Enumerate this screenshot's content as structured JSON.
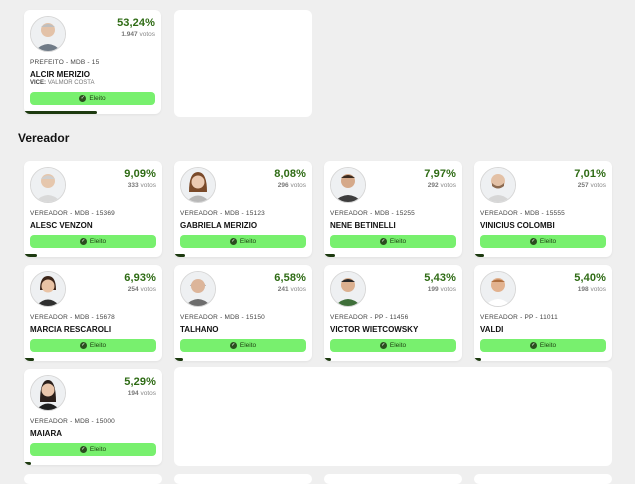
{
  "mayor": {
    "pct": "53,24%",
    "votes": "1.947",
    "votes_label": "votos",
    "role": "PREFEITO - MDB - 15",
    "name": "ALCIR MERIZIO",
    "vice_label": "VICE:",
    "vice_name": "VALMOR COSTA",
    "status": "Eleito",
    "progress": 0.5324
  },
  "section": {
    "title": "Vereador"
  },
  "candidates": [
    {
      "pct": "9,09%",
      "votes": "333",
      "votes_label": "votos",
      "role": "VEREADOR - MDB - 15369",
      "name": "ALESC VENZON",
      "status": "Eleito",
      "progress": 0.0909
    },
    {
      "pct": "8,08%",
      "votes": "296",
      "votes_label": "votos",
      "role": "VEREADOR - MDB - 15123",
      "name": "GABRIELA MERIZIO",
      "status": "Eleito",
      "progress": 0.0808
    },
    {
      "pct": "7,97%",
      "votes": "292",
      "votes_label": "votos",
      "role": "VEREADOR - MDB - 15255",
      "name": "NENE BETINELLI",
      "status": "Eleito",
      "progress": 0.0797
    },
    {
      "pct": "7,01%",
      "votes": "257",
      "votes_label": "votos",
      "role": "VEREADOR - MDB - 15555",
      "name": "VINICIUS COLOMBI",
      "status": "Eleito",
      "progress": 0.0701
    },
    {
      "pct": "6,93%",
      "votes": "254",
      "votes_label": "votos",
      "role": "VEREADOR - MDB - 15678",
      "name": "MARCIA RESCAROLI",
      "status": "Eleito",
      "progress": 0.0693
    },
    {
      "pct": "6,58%",
      "votes": "241",
      "votes_label": "votos",
      "role": "VEREADOR - MDB - 15150",
      "name": "TALHANO",
      "status": "Eleito",
      "progress": 0.0658
    },
    {
      "pct": "5,43%",
      "votes": "199",
      "votes_label": "votos",
      "role": "VEREADOR - PP - 11456",
      "name": "VICTOR WIETCOWSKY",
      "status": "Eleito",
      "progress": 0.0543
    },
    {
      "pct": "5,40%",
      "votes": "198",
      "votes_label": "votos",
      "role": "VEREADOR - PP - 11011",
      "name": "VALDI",
      "status": "Eleito",
      "progress": 0.054
    },
    {
      "pct": "5,29%",
      "votes": "194",
      "votes_label": "votos",
      "role": "VEREADOR - MDB - 15000",
      "name": "MAIARA",
      "status": "Eleito",
      "progress": 0.0529
    }
  ],
  "colors": {
    "badge": "#78f06e",
    "pct": "#2e6b14",
    "progress": "#1d3a10"
  }
}
